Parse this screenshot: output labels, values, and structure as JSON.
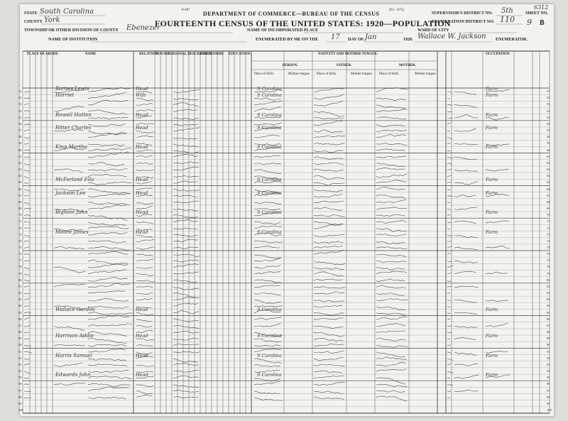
{
  "header": {
    "form_number": "9-497",
    "form_code": "(91—275)",
    "department": "DEPARTMENT OF COMMERCE—BUREAU OF THE CENSUS",
    "title": "FOURTEENTH CENSUS OF THE UNITED STATES: 1920—POPULATION",
    "state_label": "STATE",
    "state_value": "South Carolina",
    "county_label": "COUNTY",
    "county_value": "York",
    "township_label": "TOWNSHIP OR OTHER DIVISION OF COUNTY",
    "township_value": "Ebenezer",
    "incorporated_label": "NAME OF INCORPORATED PLACE",
    "institution_label": "NAME OF INSTITUTION",
    "enumerated_label": "ENUMERATED BY ME ON THE",
    "enumerated_day": "17",
    "day_of_label": "DAY OF",
    "enumerated_month": "Jan",
    "year_label": "1920.",
    "enumerator_value": "Wallace W. Jackson",
    "enumerator_label": "ENUMERATOR.",
    "ward_label": "WARD OF CITY",
    "supervisor_label": "SUPERVISOR'S DISTRICT NO.",
    "supervisor_value": "5th",
    "enumeration_label": "ENUMERATION DISTRICT NO.",
    "enumeration_value": "110",
    "sheet_label": "SHEET NO.",
    "sheet_value": "9",
    "sheet_suffix": "B",
    "margin_note": "6312"
  },
  "sections": {
    "place_of_abode": "PLACE OF ABODE.",
    "name": "NAME",
    "relation": "RELATION.",
    "tenure": "TENURE.",
    "personal_description": "PERSONAL DESCRIPTION.",
    "citizenship": "CITIZENSHIP.",
    "education": "EDUCATION.",
    "nativity": "NATIVITY AND MOTHER TONGUE.",
    "person": "PERSON.",
    "father": "FATHER.",
    "mother": "MOTHER.",
    "occupation": "OCCUPATION.",
    "place_of_birth": "Place of birth.",
    "mother_tongue": "Mother tongue."
  },
  "rows": {
    "first_line": 51,
    "last_line": 100,
    "entries": [
      {
        "line": "51",
        "name": "Barnes Lewis",
        "relation": "Head"
      },
      {
        "line": "52",
        "name": "Harriet",
        "relation": "Wife"
      },
      {
        "line": "55",
        "name": "Rowell Hatten",
        "relation": "Head"
      },
      {
        "line": "57",
        "name": "Ritter Charles",
        "relation": "Head"
      },
      {
        "line": "60",
        "name": "King Martha",
        "relation": "Head"
      },
      {
        "line": "65",
        "name": "McFarland Ella",
        "relation": "Head"
      },
      {
        "line": "67",
        "name": "Jackson Lee",
        "relation": "Head"
      },
      {
        "line": "70",
        "name": "Bigham John",
        "relation": "Head"
      },
      {
        "line": "73",
        "name": "Moore James",
        "relation": "Head"
      },
      {
        "line": "85",
        "name": "Wallace Gordon",
        "relation": "Head"
      },
      {
        "line": "89",
        "name": "Harrison Addie",
        "relation": "Head"
      },
      {
        "line": "92",
        "name": "Harris Samuel",
        "relation": "Head"
      },
      {
        "line": "95",
        "name": "Edwards John",
        "relation": "Head"
      }
    ],
    "common_place": "S Carolina",
    "common_occupation": "Farm"
  }
}
